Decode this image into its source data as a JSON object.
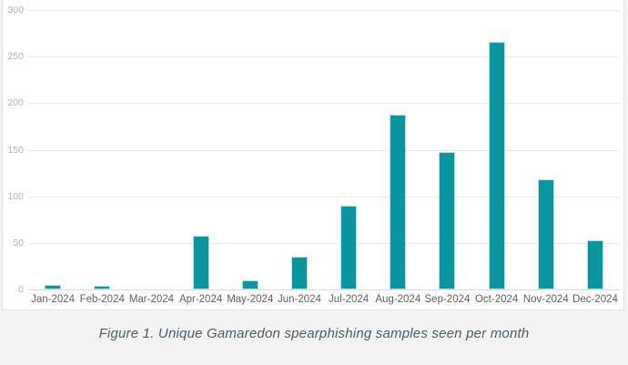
{
  "chart_data": {
    "type": "bar",
    "categories": [
      "Jan-2024",
      "Feb-2024",
      "Mar-2024",
      "Apr-2024",
      "May-2024",
      "Jun-2024",
      "Jul-2024",
      "Aug-2024",
      "Sep-2024",
      "Oct-2024",
      "Nov-2024",
      "Dec-2024"
    ],
    "values": [
      5,
      4,
      0,
      58,
      10,
      35,
      90,
      188,
      148,
      266,
      118,
      53
    ],
    "title": "",
    "xlabel": "",
    "ylabel": "",
    "ylim": [
      0,
      300
    ],
    "yticks": [
      0,
      50,
      100,
      150,
      200,
      250,
      300
    ],
    "legend": "none",
    "grid": "horizontal",
    "bar_color": "#0b95a0",
    "bar_edge_color": "#b9e0e4",
    "gridline_color": "#ececec",
    "baseline_color": "#dcdcdc",
    "ytick_color": "#b3b3b3",
    "xtick_color": "#5e5e5e"
  },
  "caption": {
    "text": "Figure 1. Unique Gamaredon spearphishing samples seen per month",
    "color": "#4d5b65"
  },
  "page": {
    "background": "#f3f3f3",
    "card_background": "#ffffff"
  }
}
